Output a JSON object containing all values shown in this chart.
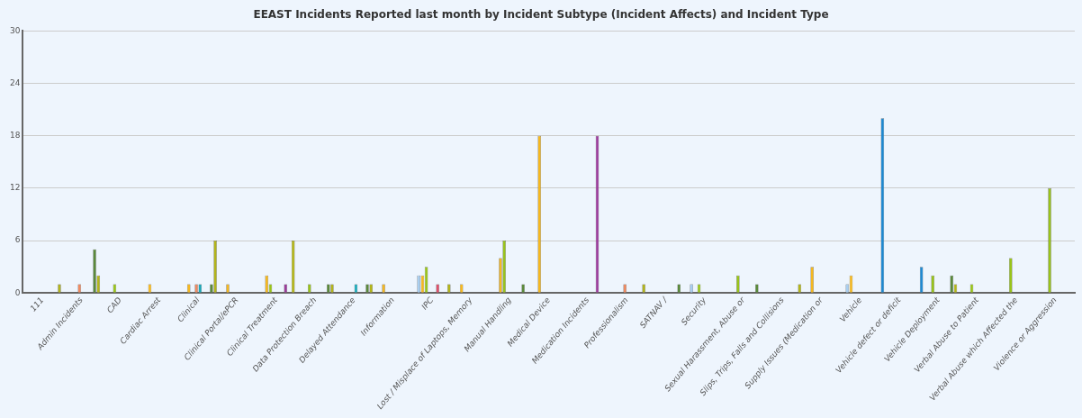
{
  "chart_data": {
    "type": "bar",
    "title": "EEAST Incidents Reported last month by Incident Subtype (Incident Affects) and Incident Type",
    "categories": [
      "111",
      "Admin Incidents",
      "CAD",
      "Cardiac Arrest",
      "Clinical",
      "Clinical Portal/ePCR",
      "Clinical Treatment",
      "Data Protection Breach",
      "Delayed Attendance",
      "Information",
      "IPC",
      "Lost / Misplace of Laptops, Memory",
      "Manual Handling",
      "Medical Device",
      "Medication Incidents",
      "Professionalism",
      "SATNAV /",
      "Security",
      "Sexual Harassment, Abuse or",
      "Slips, Trips, Falls and Collisions",
      "Supply Issues (Medication or",
      "Vehicle",
      "Vehicle defect or deficit",
      "Vehicle Deployment",
      "Verbal Abuse to Patient",
      "Verbal Abuse which Affected the",
      "Violence or Aggression"
    ],
    "series": [
      {
        "color": "#1e88d0",
        "values": [
          null,
          null,
          null,
          null,
          null,
          null,
          null,
          null,
          null,
          null,
          null,
          null,
          null,
          null,
          null,
          null,
          null,
          null,
          null,
          null,
          null,
          null,
          20,
          3,
          null,
          null,
          null
        ]
      },
      {
        "color": "#a8cef0",
        "values": [
          null,
          null,
          null,
          null,
          null,
          null,
          null,
          null,
          null,
          null,
          2,
          null,
          null,
          null,
          null,
          null,
          null,
          1,
          null,
          null,
          null,
          1,
          null,
          null,
          null,
          null,
          null
        ]
      },
      {
        "color": "#f5b820",
        "values": [
          null,
          null,
          null,
          1,
          1,
          1,
          2,
          null,
          null,
          1,
          2,
          1,
          4,
          18,
          null,
          null,
          null,
          null,
          null,
          null,
          3,
          2,
          null,
          null,
          null,
          null,
          null
        ]
      },
      {
        "color": "#99c31a",
        "values": [
          null,
          null,
          1,
          null,
          null,
          null,
          1,
          1,
          null,
          null,
          3,
          null,
          6,
          null,
          null,
          null,
          null,
          1,
          2,
          null,
          null,
          null,
          null,
          2,
          1,
          4,
          12
        ]
      },
      {
        "color": "#f08a60",
        "values": [
          null,
          1,
          null,
          null,
          1,
          null,
          null,
          null,
          null,
          null,
          null,
          null,
          null,
          null,
          null,
          1,
          null,
          null,
          null,
          null,
          null,
          null,
          null,
          null,
          null,
          null,
          null
        ]
      },
      {
        "color": "#1aa8b8",
        "values": [
          null,
          null,
          null,
          null,
          1,
          null,
          null,
          null,
          1,
          null,
          null,
          null,
          null,
          null,
          null,
          null,
          null,
          null,
          null,
          null,
          null,
          null,
          null,
          null,
          null,
          null,
          null
        ]
      },
      {
        "color": "#e0506a",
        "values": [
          null,
          null,
          null,
          null,
          null,
          null,
          null,
          null,
          null,
          null,
          1,
          null,
          null,
          null,
          null,
          null,
          null,
          null,
          null,
          null,
          null,
          null,
          null,
          null,
          null,
          null,
          null
        ]
      },
      {
        "color": "#9b3c9b",
        "values": [
          null,
          null,
          null,
          null,
          null,
          null,
          1,
          null,
          null,
          null,
          null,
          null,
          null,
          null,
          18,
          null,
          null,
          null,
          null,
          null,
          null,
          null,
          null,
          null,
          null,
          null,
          null
        ]
      },
      {
        "color": "#5a8a3a",
        "values": [
          null,
          5,
          null,
          null,
          1,
          null,
          null,
          1,
          1,
          null,
          null,
          null,
          1,
          null,
          null,
          null,
          1,
          null,
          1,
          null,
          null,
          null,
          null,
          2,
          null,
          null,
          null
        ]
      },
      {
        "color": "#b3b51a",
        "values": [
          1,
          2,
          null,
          null,
          6,
          null,
          6,
          1,
          1,
          null,
          1,
          null,
          null,
          null,
          null,
          1,
          null,
          null,
          null,
          1,
          null,
          null,
          null,
          1,
          null,
          null,
          null
        ]
      }
    ],
    "ylim": [
      0,
      30
    ],
    "yticks": [
      0,
      6,
      12,
      18,
      24,
      30
    ],
    "grid": "y",
    "legend": false
  }
}
